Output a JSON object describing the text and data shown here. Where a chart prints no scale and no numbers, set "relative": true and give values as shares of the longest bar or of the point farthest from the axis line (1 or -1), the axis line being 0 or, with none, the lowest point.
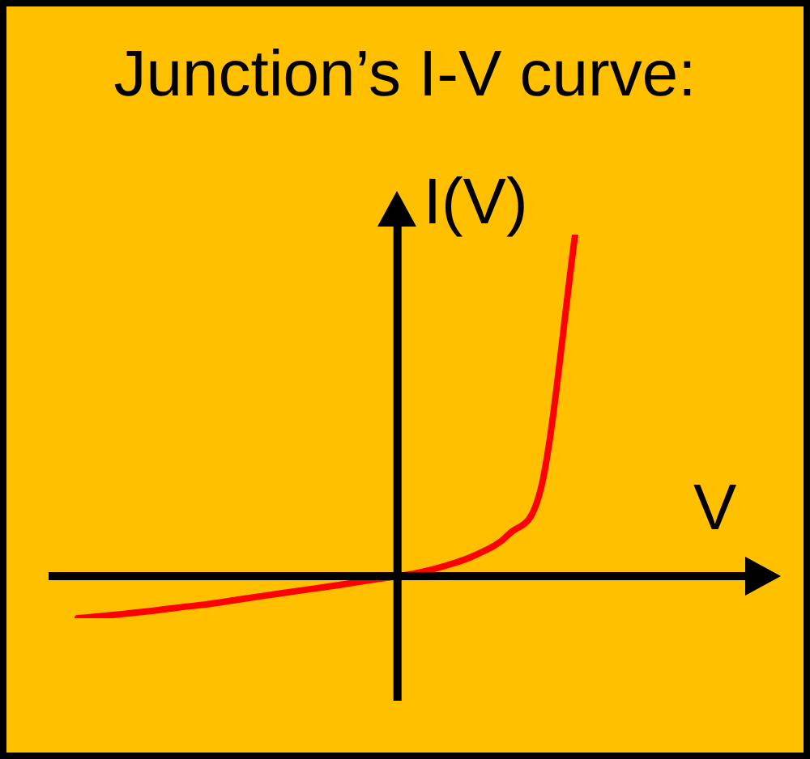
{
  "chart_data": {
    "type": "line",
    "title": "Junction’s I-V curve:",
    "xlabel": "V",
    "ylabel": "I(V)",
    "relative": true,
    "categories": [
      null,
      null,
      null,
      null,
      null,
      null,
      null,
      null,
      null,
      null,
      null,
      null,
      null,
      null,
      null,
      null
    ],
    "series": [
      {
        "color": "#ff0000",
        "values": [
          -0.123,
          -0.114,
          -0.104,
          -0.092,
          -0.081,
          -0.066,
          -0.052,
          -0.038,
          -0.024,
          -0.009,
          0.005,
          0.028,
          0.062,
          0.123,
          0.27,
          1
        ]
      }
    ],
    "marker": "none",
    "line_style": "solid",
    "grid": false,
    "legend": false
  }
}
